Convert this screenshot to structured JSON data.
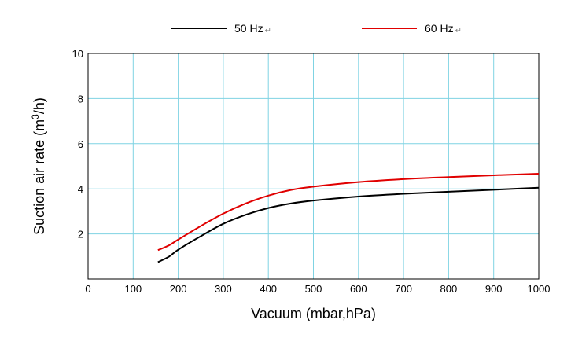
{
  "chart_data": {
    "type": "line",
    "title": "",
    "xlabel": "Vacuum (mbar,hPa)",
    "ylabel": {
      "prefix": "Suction air rate (m",
      "sup": "3",
      "suffix": "/h)"
    },
    "xlim": [
      0,
      1000
    ],
    "ylim": [
      0,
      10
    ],
    "xticks": [
      0,
      100,
      200,
      300,
      400,
      500,
      600,
      700,
      800,
      900,
      1000
    ],
    "yticks": [
      2,
      4,
      6,
      8,
      10
    ],
    "grid": true,
    "grid_color": "#7fd3e3",
    "legend_position": "top",
    "legend_mark": "↵",
    "series": [
      {
        "name": "50 Hz",
        "color": "#000000",
        "x": [
          155,
          180,
          200,
          250,
          300,
          350,
          400,
          450,
          500,
          600,
          700,
          800,
          900,
          1000
        ],
        "y": [
          0.75,
          1.0,
          1.3,
          1.9,
          2.45,
          2.85,
          3.15,
          3.35,
          3.48,
          3.66,
          3.78,
          3.87,
          3.96,
          4.05
        ]
      },
      {
        "name": "60 Hz",
        "color": "#e00000",
        "x": [
          155,
          180,
          200,
          250,
          300,
          350,
          400,
          450,
          500,
          600,
          700,
          800,
          900,
          1000
        ],
        "y": [
          1.28,
          1.5,
          1.75,
          2.35,
          2.9,
          3.35,
          3.7,
          3.95,
          4.1,
          4.3,
          4.43,
          4.52,
          4.6,
          4.67
        ]
      }
    ]
  }
}
